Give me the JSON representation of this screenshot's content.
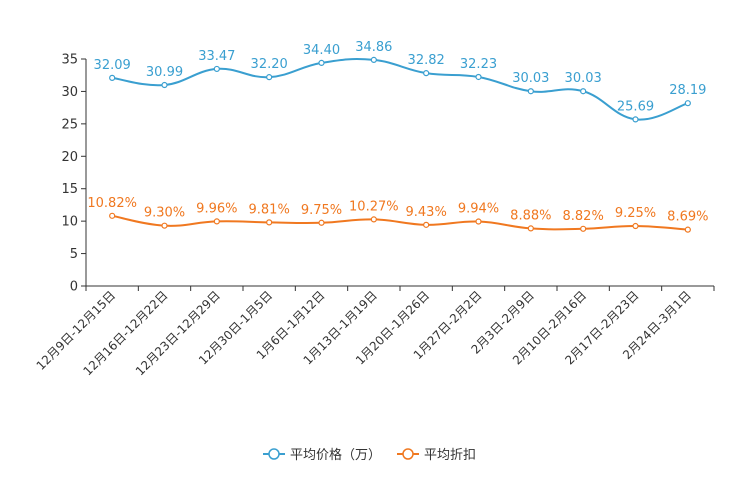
{
  "chart_data": {
    "type": "line",
    "categories": [
      "12月9日-12月15日",
      "12月16日-12月22日",
      "12月23日-12月29日",
      "12月30日-1月5日",
      "1月6日-1月12日",
      "1月13日-1月19日",
      "1月20日-1月26日",
      "1月27日-2月2日",
      "2月3日-2月9日",
      "2月10日-2月16日",
      "2月17日-2月23日",
      "2月24日-3月1日"
    ],
    "series": [
      {
        "name": "平均价格（万）",
        "color": "#3a9fd0",
        "values": [
          32.09,
          30.99,
          33.47,
          32.2,
          34.4,
          34.86,
          32.82,
          32.23,
          30.03,
          30.03,
          25.69,
          28.19
        ],
        "labels": [
          "32.09",
          "30.99",
          "33.47",
          "32.20",
          "34.40",
          "34.86",
          "32.82",
          "32.23",
          "30.03",
          "30.03",
          "25.69",
          "28.19"
        ]
      },
      {
        "name": "平均折扣",
        "color": "#f07820",
        "values": [
          10.82,
          9.3,
          9.96,
          9.81,
          9.75,
          10.27,
          9.43,
          9.94,
          8.88,
          8.82,
          9.25,
          8.69
        ],
        "labels": [
          "10.82%",
          "9.30%",
          "9.96%",
          "9.81%",
          "9.75%",
          "10.27%",
          "9.43%",
          "9.94%",
          "8.88%",
          "8.82%",
          "9.25%",
          "8.69%"
        ]
      }
    ],
    "yticks": [
      "0",
      "5",
      "10",
      "15",
      "20",
      "25",
      "30",
      "35"
    ],
    "ylim": [
      0,
      35
    ],
    "legend_position": "bottom-center"
  }
}
